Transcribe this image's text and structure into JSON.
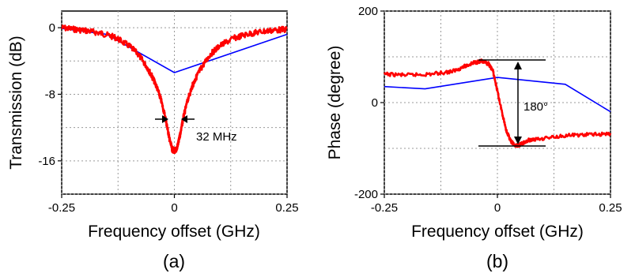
{
  "chart_data": [
    {
      "type": "line",
      "panel_label": "(a)",
      "xlabel": "Frequency offset (GHz)",
      "ylabel": "Transmission (dB)",
      "xlim": [
        -0.25,
        0.25
      ],
      "ylim": [
        -20,
        2
      ],
      "x_ticks": [
        -0.25,
        0,
        0.25
      ],
      "x_tick_labels": [
        "-0.25",
        "0",
        "0.25"
      ],
      "y_ticks": [
        0,
        -8,
        -16
      ],
      "y_tick_labels": [
        "0",
        "-8",
        "-16"
      ],
      "grid": true,
      "annotation": "32 MHz",
      "colors": {
        "measured": "#ff0000",
        "fit": "#0000ff"
      },
      "series": [
        {
          "color": "#ff0000",
          "x": [
            -0.25,
            -0.22,
            -0.19,
            -0.16,
            -0.13,
            -0.1,
            -0.08,
            -0.06,
            -0.05,
            -0.04,
            -0.03,
            -0.02,
            -0.015,
            -0.01,
            -0.005,
            0,
            0.005,
            0.01,
            0.015,
            0.02,
            0.03,
            0.04,
            0.05,
            0.06,
            0.08,
            0.1,
            0.13,
            0.16,
            0.19,
            0.22,
            0.25
          ],
          "y": [
            0,
            -0.2,
            -0.4,
            -0.7,
            -1.2,
            -2.2,
            -3.2,
            -4.8,
            -5.8,
            -7.0,
            -8.6,
            -10.8,
            -12.2,
            -13.6,
            -14.6,
            -14.8,
            -14.6,
            -13.6,
            -12.2,
            -10.8,
            -8.6,
            -7.0,
            -5.8,
            -4.8,
            -3.2,
            -2.2,
            -1.3,
            -0.8,
            -0.5,
            -0.3,
            -0.2
          ]
        },
        {
          "color": "#0000ff",
          "x": [
            -0.25,
            -0.15,
            0,
            0.25
          ],
          "y": [
            -0.1,
            -0.8,
            -5.4,
            -0.8
          ]
        }
      ]
    },
    {
      "type": "line",
      "panel_label": "(b)",
      "xlabel": "Frequency offset (GHz)",
      "ylabel": "Phase (degree)",
      "xlim": [
        -0.25,
        0.25
      ],
      "ylim": [
        -200,
        200
      ],
      "x_ticks": [
        -0.25,
        0,
        0.25
      ],
      "x_tick_labels": [
        "-0.25",
        "0",
        "0.25"
      ],
      "y_ticks": [
        200,
        0,
        -200
      ],
      "y_tick_labels": [
        "200",
        "0",
        "-200"
      ],
      "grid": true,
      "annotation": "180°",
      "colors": {
        "measured": "#ff0000",
        "fit": "#0000ff"
      },
      "series": [
        {
          "color": "#ff0000",
          "x": [
            -0.25,
            -0.2,
            -0.15,
            -0.1,
            -0.07,
            -0.05,
            -0.035,
            -0.02,
            -0.01,
            0,
            0.01,
            0.02,
            0.03,
            0.04,
            0.05,
            0.07,
            0.1,
            0.15,
            0.2,
            0.25
          ],
          "y": [
            62,
            60,
            62,
            68,
            80,
            88,
            90,
            85,
            70,
            25,
            -20,
            -62,
            -85,
            -95,
            -92,
            -82,
            -78,
            -72,
            -70,
            -68
          ]
        },
        {
          "color": "#0000ff",
          "x": [
            -0.25,
            -0.16,
            0,
            0.15,
            0.25
          ],
          "y": [
            35,
            30,
            55,
            40,
            -20
          ]
        }
      ]
    }
  ]
}
